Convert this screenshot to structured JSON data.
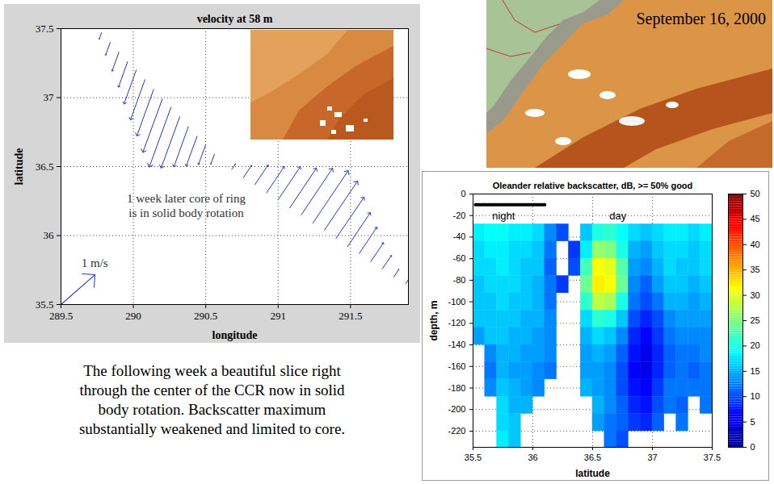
{
  "chart_data": [
    {
      "type": "vector",
      "title": "velocity at 58 m",
      "x_label": "longitude",
      "y_label": "latitude",
      "xlim": [
        289.5,
        291.9
      ],
      "ylim": [
        35.5,
        37.5
      ],
      "xticks": [
        289.5,
        290,
        290.5,
        291,
        291.5
      ],
      "yticks": [
        35.5,
        36,
        36.5,
        37,
        37.5
      ],
      "grid": true,
      "color": "#1f35c7",
      "lon": [
        289.78,
        289.84,
        289.9,
        289.96,
        290.02,
        290.08,
        290.14,
        290.2,
        290.26,
        290.32,
        290.38,
        290.44,
        290.5,
        290.56,
        290.68,
        290.76,
        290.84,
        290.92,
        291.0,
        291.08,
        291.16,
        291.24,
        291.32,
        291.4,
        291.48,
        291.56,
        291.64,
        291.72,
        291.8,
        291.88
      ],
      "lat": [
        37.47,
        37.4,
        37.33,
        37.26,
        37.2,
        37.13,
        37.06,
        36.99,
        36.93,
        36.86,
        36.79,
        36.72,
        36.66,
        36.59,
        36.48,
        36.42,
        36.37,
        36.31,
        36.26,
        36.2,
        36.15,
        36.09,
        36.04,
        35.98,
        35.92,
        35.87,
        35.81,
        35.76,
        35.7,
        35.65
      ],
      "u": [
        -0.05,
        -0.1,
        -0.15,
        -0.2,
        -0.27,
        -0.32,
        -0.37,
        -0.43,
        -0.48,
        -0.41,
        -0.32,
        -0.24,
        -0.16,
        -0.08,
        0.08,
        0.18,
        0.29,
        0.39,
        0.49,
        0.59,
        0.69,
        0.78,
        0.73,
        0.62,
        0.5,
        0.39,
        0.28,
        0.2,
        0.11,
        0.06
      ],
      "v": [
        -0.14,
        -0.28,
        -0.42,
        -0.56,
        -0.75,
        -0.89,
        -1.03,
        -1.18,
        -1.32,
        -1.13,
        -0.89,
        -0.66,
        -0.44,
        -0.22,
        0.12,
        0.27,
        0.43,
        0.58,
        0.73,
        0.88,
        1.03,
        1.16,
        1.08,
        0.91,
        0.75,
        0.58,
        0.42,
        0.29,
        0.17,
        0.08
      ],
      "scale_arrow": {
        "label": "1 m/s",
        "lon": 289.5,
        "lat": 35.5,
        "u": 0.75,
        "v": 0.66
      },
      "annotation": [
        "1 week later core of ring",
        "is in solid body rotation"
      ]
    },
    {
      "type": "heatmap",
      "title": "Oleander relative backscatter, dB, >= 50% good",
      "x_label": "latitude",
      "y_label": "depth, m",
      "xlim": [
        35.5,
        37.5
      ],
      "ylim": [
        -235,
        0
      ],
      "xticks": [
        35.5,
        36,
        36.5,
        37,
        37.5
      ],
      "yticks": [
        0,
        -20,
        -40,
        -60,
        -80,
        -100,
        -120,
        -140,
        -160,
        -180,
        -200,
        -220
      ],
      "grid": true,
      "lat_edges": [
        35.5,
        35.6,
        35.7,
        35.8,
        35.9,
        36.0,
        36.1,
        36.2,
        36.3,
        36.4,
        36.5,
        36.6,
        36.7,
        36.8,
        36.9,
        37.0,
        37.1,
        37.2,
        37.3,
        37.4,
        37.5
      ],
      "depth_edges": [
        -28,
        -44,
        -60,
        -76,
        -92,
        -108,
        -124,
        -140,
        -156,
        -172,
        -188,
        -204,
        -220,
        -235
      ],
      "cells": [
        [
          18,
          19,
          19,
          18,
          18,
          17,
          13,
          10,
          null,
          16,
          20,
          21,
          19,
          17,
          16,
          17,
          18,
          18,
          17,
          18
        ],
        [
          17,
          18,
          18,
          17,
          17,
          16,
          12,
          null,
          9,
          18,
          26,
          25,
          20,
          15,
          14,
          16,
          17,
          17,
          16,
          17
        ],
        [
          17,
          17,
          18,
          17,
          16,
          16,
          11,
          null,
          10,
          22,
          31,
          30,
          23,
          14,
          13,
          15,
          17,
          16,
          16,
          17
        ],
        [
          16,
          17,
          17,
          17,
          16,
          15,
          12,
          9,
          null,
          24,
          32,
          31,
          24,
          13,
          11,
          14,
          16,
          16,
          15,
          16
        ],
        [
          16,
          16,
          17,
          16,
          16,
          15,
          12,
          null,
          null,
          21,
          28,
          27,
          20,
          12,
          10,
          12,
          15,
          15,
          14,
          15
        ],
        [
          16,
          16,
          16,
          16,
          15,
          15,
          13,
          null,
          null,
          17,
          21,
          20,
          16,
          10,
          8,
          10,
          13,
          14,
          14,
          14
        ],
        [
          14,
          16,
          16,
          15,
          15,
          14,
          13,
          null,
          null,
          15,
          17,
          16,
          13,
          8,
          6,
          9,
          12,
          13,
          13,
          13
        ],
        [
          null,
          13,
          15,
          15,
          14,
          14,
          13,
          null,
          null,
          14,
          15,
          14,
          11,
          7,
          5,
          8,
          11,
          12,
          12,
          13
        ],
        [
          null,
          12,
          15,
          14,
          14,
          13,
          12,
          null,
          null,
          14,
          14,
          13,
          10,
          6,
          5,
          8,
          11,
          12,
          11,
          12
        ],
        [
          null,
          13,
          16,
          15,
          14,
          13,
          null,
          null,
          null,
          15,
          14,
          13,
          10,
          7,
          6,
          9,
          12,
          12,
          12,
          12
        ],
        [
          null,
          null,
          17,
          15,
          15,
          null,
          null,
          null,
          null,
          null,
          15,
          13,
          11,
          8,
          7,
          10,
          12,
          11,
          null,
          12
        ],
        [
          null,
          null,
          17,
          16,
          null,
          null,
          null,
          null,
          null,
          null,
          14,
          12,
          11,
          9,
          8,
          11,
          null,
          12,
          null,
          null
        ],
        [
          null,
          null,
          18,
          16,
          null,
          null,
          null,
          null,
          null,
          null,
          null,
          12,
          10,
          null,
          null,
          null,
          null,
          null,
          null,
          null
        ]
      ],
      "colorbar": {
        "range": [
          0,
          50
        ],
        "ticks": [
          0,
          5,
          10,
          15,
          20,
          25,
          30,
          35,
          40,
          45,
          50
        ]
      },
      "annotations": [
        "night",
        "day"
      ],
      "night_track": {
        "lat": [
          35.52,
          36.1
        ],
        "depth": -10
      }
    }
  ],
  "map_image": {
    "text": "September 16, 2000"
  },
  "caption": [
    "The following week a beautiful slice right",
    "through the center of the CCR now in solid",
    "body rotation. Backscatter maximum",
    "substantially weakened and limited to core."
  ]
}
